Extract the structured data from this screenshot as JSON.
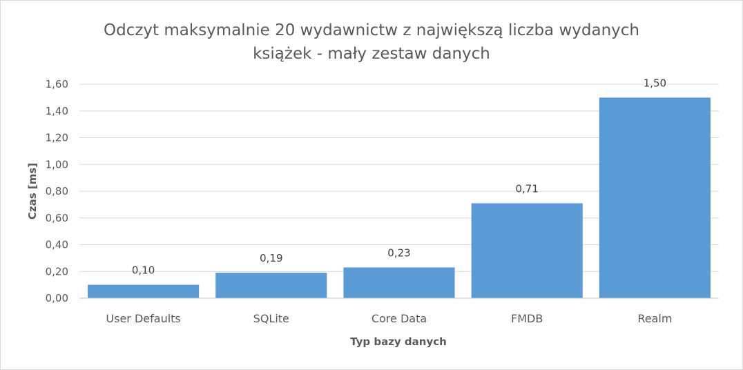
{
  "chart_data": {
    "type": "bar",
    "title_lines": [
      "Odczyt maksymalnie 20 wydawnictw z największą liczba wydanych",
      "książek - mały zestaw danych"
    ],
    "xlabel": "Typ bazy danych",
    "ylabel": "Czas [ms]",
    "categories": [
      "User Defaults",
      "SQLite",
      "Core Data",
      "FMDB",
      "Realm"
    ],
    "values": [
      0.1,
      0.19,
      0.23,
      0.71,
      1.5
    ],
    "value_labels": [
      "0,10",
      "0,19",
      "0,23",
      "0,71",
      "1,50"
    ],
    "yticks": [
      0,
      0.2,
      0.4,
      0.6,
      0.8,
      1.0,
      1.2,
      1.4,
      1.6
    ],
    "ytick_labels": [
      "0,00",
      "0,20",
      "0,40",
      "0,60",
      "0,80",
      "1,00",
      "1,20",
      "1,40",
      "1,60"
    ],
    "ylim": [
      0,
      1.6
    ],
    "grid": true,
    "legend": "none",
    "bar_color": "#5b9bd5"
  }
}
